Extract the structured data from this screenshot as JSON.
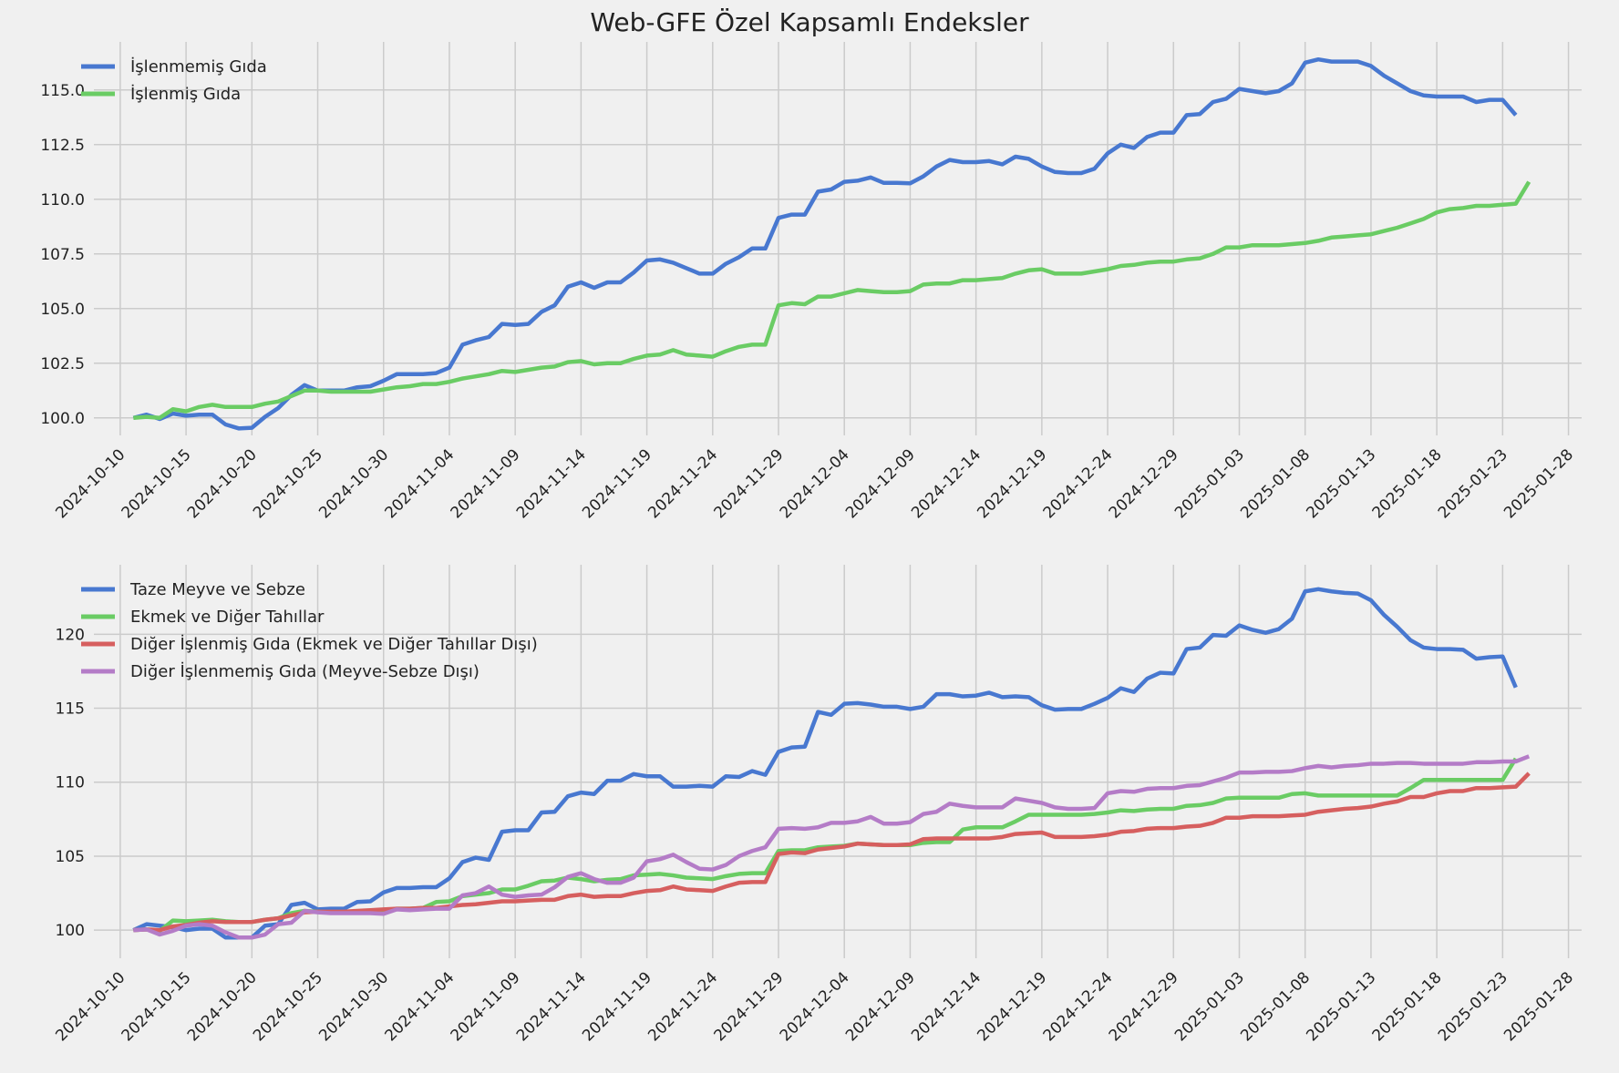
{
  "title": "Web-GFE Özel Kapsamlı Endeksler",
  "chart_data": [
    {
      "type": "line",
      "x_start": "2024-10-11",
      "x_ticks": [
        "2024-10-10",
        "2024-10-15",
        "2024-10-20",
        "2024-10-25",
        "2024-10-30",
        "2024-11-04",
        "2024-11-09",
        "2024-11-14",
        "2024-11-19",
        "2024-11-24",
        "2024-11-29",
        "2024-12-04",
        "2024-12-09",
        "2024-12-14",
        "2024-12-19",
        "2024-12-24",
        "2024-12-29",
        "2025-01-03",
        "2025-01-08",
        "2025-01-13",
        "2025-01-18",
        "2025-01-23",
        "2025-01-28"
      ],
      "y_ticks": [
        "100.0",
        "102.5",
        "105.0",
        "107.5",
        "110.0",
        "112.5",
        "115.0"
      ],
      "ylim": [
        99.2,
        117.2
      ],
      "xlim": [
        "2024-10-08",
        "2025-01-29"
      ],
      "grid": true,
      "legend": "top-left",
      "series": [
        {
          "name": "İşlenmemiş Gıda",
          "color": "#4878d0",
          "values": [
            100.0,
            100.15,
            99.95,
            100.2,
            100.1,
            100.15,
            100.15,
            99.7,
            99.52,
            99.55,
            100.05,
            100.45,
            101.05,
            101.5,
            101.25,
            101.25,
            101.25,
            101.4,
            101.45,
            101.7,
            102.0,
            102.0,
            102.0,
            102.05,
            102.3,
            103.35,
            103.55,
            103.7,
            104.3,
            104.25,
            104.3,
            104.85,
            105.15,
            106.0,
            106.2,
            105.95,
            106.2,
            106.2,
            106.65,
            107.2,
            107.25,
            107.1,
            106.85,
            106.6,
            106.6,
            107.05,
            107.35,
            107.75,
            107.75,
            109.15,
            109.3,
            109.3,
            110.35,
            110.45,
            110.8,
            110.85,
            111.0,
            110.75,
            110.75,
            110.73,
            111.05,
            111.5,
            111.8,
            111.7,
            111.7,
            111.75,
            111.6,
            111.95,
            111.85,
            111.5,
            111.25,
            111.2,
            111.2,
            111.4,
            112.1,
            112.5,
            112.35,
            112.85,
            113.05,
            113.05,
            113.85,
            113.9,
            114.45,
            114.6,
            115.05,
            114.95,
            114.85,
            114.95,
            115.3,
            116.25,
            116.4,
            116.3,
            116.3,
            116.3,
            116.1,
            115.65,
            115.3,
            114.95,
            114.75,
            114.7,
            114.7,
            114.7,
            114.45,
            114.55,
            114.55,
            113.85
          ]
        },
        {
          "name": "İşlenmiş Gıda",
          "color": "#6acc64",
          "values": [
            100.0,
            100.05,
            100.0,
            100.4,
            100.3,
            100.5,
            100.6,
            100.5,
            100.5,
            100.5,
            100.65,
            100.75,
            101.0,
            101.25,
            101.25,
            101.2,
            101.2,
            101.2,
            101.2,
            101.3,
            101.4,
            101.45,
            101.55,
            101.55,
            101.65,
            101.8,
            101.9,
            102.0,
            102.15,
            102.1,
            102.2,
            102.3,
            102.35,
            102.55,
            102.6,
            102.45,
            102.5,
            102.5,
            102.7,
            102.85,
            102.9,
            103.1,
            102.9,
            102.85,
            102.8,
            103.05,
            103.25,
            103.35,
            103.35,
            105.15,
            105.25,
            105.2,
            105.55,
            105.55,
            105.7,
            105.85,
            105.8,
            105.75,
            105.75,
            105.8,
            106.1,
            106.15,
            106.15,
            106.3,
            106.3,
            106.35,
            106.4,
            106.6,
            106.75,
            106.8,
            106.6,
            106.6,
            106.6,
            106.7,
            106.8,
            106.95,
            107.0,
            107.1,
            107.15,
            107.15,
            107.25,
            107.3,
            107.5,
            107.8,
            107.8,
            107.9,
            107.9,
            107.9,
            107.95,
            108.0,
            108.1,
            108.25,
            108.3,
            108.35,
            108.4,
            108.55,
            108.7,
            108.9,
            109.1,
            109.4,
            109.55,
            109.6,
            109.7,
            109.7,
            109.75,
            109.8,
            110.8
          ]
        }
      ]
    },
    {
      "type": "line",
      "x_start": "2024-10-11",
      "x_ticks": [
        "2024-10-10",
        "2024-10-15",
        "2024-10-20",
        "2024-10-25",
        "2024-10-30",
        "2024-11-04",
        "2024-11-09",
        "2024-11-14",
        "2024-11-19",
        "2024-11-24",
        "2024-11-29",
        "2024-12-04",
        "2024-12-09",
        "2024-12-14",
        "2024-12-19",
        "2024-12-24",
        "2024-12-29",
        "2025-01-03",
        "2025-01-08",
        "2025-01-13",
        "2025-01-18",
        "2025-01-23",
        "2025-01-28"
      ],
      "y_ticks": [
        "100",
        "105",
        "110",
        "115",
        "120"
      ],
      "ylim": [
        98.1,
        124.7
      ],
      "xlim": [
        "2024-10-08",
        "2025-01-29"
      ],
      "grid": true,
      "legend": "top-left",
      "series": [
        {
          "name": "Taze Meyve ve Sebze",
          "color": "#4878d0",
          "values": [
            100.0,
            100.4,
            100.3,
            100.2,
            100.0,
            100.1,
            100.1,
            99.5,
            99.5,
            99.5,
            100.3,
            100.4,
            101.7,
            101.85,
            101.4,
            101.45,
            101.45,
            101.9,
            101.95,
            102.55,
            102.85,
            102.85,
            102.9,
            102.9,
            103.5,
            104.6,
            104.9,
            104.75,
            106.65,
            106.75,
            106.75,
            107.95,
            108.0,
            109.05,
            109.3,
            109.2,
            110.1,
            110.1,
            110.55,
            110.4,
            110.4,
            109.7,
            109.7,
            109.75,
            109.7,
            110.4,
            110.35,
            110.75,
            110.5,
            112.05,
            112.35,
            112.4,
            114.75,
            114.55,
            115.3,
            115.35,
            115.25,
            115.1,
            115.1,
            114.95,
            115.1,
            115.95,
            115.95,
            115.8,
            115.85,
            116.05,
            115.75,
            115.8,
            115.75,
            115.2,
            114.9,
            114.95,
            114.95,
            115.3,
            115.7,
            116.35,
            116.1,
            117.0,
            117.4,
            117.35,
            119.0,
            119.1,
            119.95,
            119.9,
            120.6,
            120.3,
            120.1,
            120.35,
            121.05,
            122.9,
            123.05,
            122.9,
            122.8,
            122.75,
            122.3,
            121.3,
            120.5,
            119.6,
            119.1,
            119.0,
            119.0,
            118.95,
            118.35,
            118.45,
            118.5,
            116.4
          ]
        },
        {
          "name": "Ekmek ve Diğer Tahıllar",
          "color": "#6acc64",
          "values": [
            100.0,
            100.05,
            99.95,
            100.65,
            100.6,
            100.65,
            100.7,
            100.6,
            100.55,
            100.55,
            100.7,
            100.8,
            101.15,
            101.3,
            101.25,
            101.2,
            101.2,
            101.2,
            101.25,
            101.3,
            101.45,
            101.45,
            101.5,
            101.9,
            101.95,
            102.3,
            102.4,
            102.5,
            102.75,
            102.75,
            103.0,
            103.3,
            103.35,
            103.55,
            103.45,
            103.3,
            103.4,
            103.45,
            103.7,
            103.75,
            103.8,
            103.7,
            103.55,
            103.5,
            103.45,
            103.65,
            103.8,
            103.85,
            103.85,
            105.35,
            105.4,
            105.4,
            105.6,
            105.65,
            105.7,
            105.85,
            105.8,
            105.75,
            105.75,
            105.75,
            105.9,
            105.95,
            105.95,
            106.8,
            106.95,
            106.95,
            106.95,
            107.35,
            107.8,
            107.8,
            107.8,
            107.8,
            107.8,
            107.85,
            107.95,
            108.1,
            108.05,
            108.15,
            108.2,
            108.2,
            108.4,
            108.45,
            108.6,
            108.9,
            108.95,
            108.95,
            108.95,
            108.95,
            109.2,
            109.25,
            109.1,
            109.1,
            109.1,
            109.1,
            109.1,
            109.1,
            109.1,
            109.6,
            110.15,
            110.15,
            110.15,
            110.15,
            110.15,
            110.15,
            110.15,
            111.6
          ]
        },
        {
          "name": "Diğer İşlenmiş Gıda (Ekmek ve Diğer Tahıllar Dışı)",
          "color": "#d65f5f",
          "values": [
            100.0,
            100.05,
            100.0,
            100.25,
            100.35,
            100.5,
            100.6,
            100.55,
            100.55,
            100.55,
            100.7,
            100.8,
            101.0,
            101.2,
            101.25,
            101.25,
            101.25,
            101.3,
            101.35,
            101.4,
            101.45,
            101.45,
            101.5,
            101.5,
            101.6,
            101.7,
            101.75,
            101.85,
            101.95,
            101.95,
            102.0,
            102.05,
            102.05,
            102.3,
            102.4,
            102.25,
            102.3,
            102.3,
            102.5,
            102.65,
            102.7,
            102.95,
            102.75,
            102.7,
            102.65,
            102.95,
            103.2,
            103.25,
            103.25,
            105.15,
            105.25,
            105.2,
            105.45,
            105.55,
            105.65,
            105.85,
            105.8,
            105.75,
            105.75,
            105.8,
            106.15,
            106.2,
            106.2,
            106.2,
            106.2,
            106.2,
            106.3,
            106.5,
            106.55,
            106.6,
            106.3,
            106.3,
            106.3,
            106.35,
            106.45,
            106.65,
            106.7,
            106.85,
            106.9,
            106.9,
            107.0,
            107.05,
            107.25,
            107.6,
            107.6,
            107.7,
            107.7,
            107.7,
            107.75,
            107.8,
            108.0,
            108.1,
            108.2,
            108.25,
            108.35,
            108.55,
            108.7,
            109.0,
            109.0,
            109.25,
            109.4,
            109.4,
            109.6,
            109.6,
            109.65,
            109.7,
            110.6
          ]
        },
        {
          "name": "Diğer İşlenmemiş Gıda (Meyve-Sebze Dışı)",
          "color": "#b47cc7",
          "values": [
            100.0,
            100.05,
            99.7,
            99.95,
            100.3,
            100.4,
            100.3,
            99.85,
            99.5,
            99.5,
            99.7,
            100.4,
            100.5,
            101.3,
            101.2,
            101.15,
            101.15,
            101.15,
            101.15,
            101.1,
            101.4,
            101.35,
            101.4,
            101.45,
            101.45,
            102.35,
            102.5,
            102.95,
            102.4,
            102.25,
            102.35,
            102.4,
            102.9,
            103.6,
            103.85,
            103.45,
            103.2,
            103.2,
            103.55,
            104.65,
            104.8,
            105.1,
            104.6,
            104.15,
            104.1,
            104.4,
            105.0,
            105.35,
            105.6,
            106.85,
            106.9,
            106.85,
            106.95,
            107.25,
            107.25,
            107.35,
            107.65,
            107.2,
            107.2,
            107.3,
            107.85,
            108.0,
            108.55,
            108.4,
            108.3,
            108.3,
            108.3,
            108.9,
            108.75,
            108.6,
            108.3,
            108.2,
            108.2,
            108.25,
            109.25,
            109.4,
            109.35,
            109.55,
            109.6,
            109.6,
            109.75,
            109.8,
            110.05,
            110.3,
            110.65,
            110.65,
            110.7,
            110.7,
            110.75,
            110.95,
            111.1,
            111.0,
            111.1,
            111.15,
            111.25,
            111.25,
            111.3,
            111.3,
            111.25,
            111.25,
            111.25,
            111.25,
            111.35,
            111.35,
            111.4,
            111.4,
            111.75
          ]
        }
      ]
    }
  ]
}
